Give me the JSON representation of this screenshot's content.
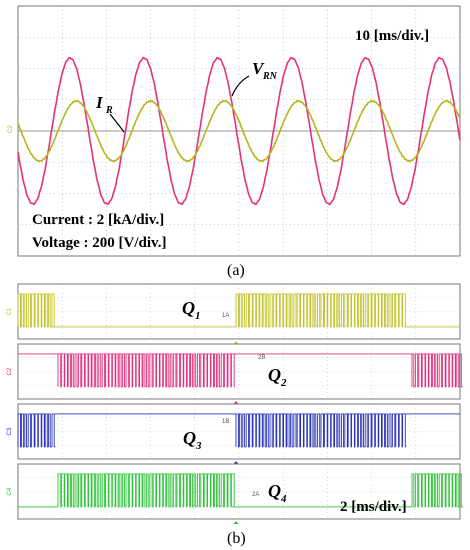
{
  "panel_a": {
    "time_scale": "10 [ms/div.]",
    "current_label_main": "I",
    "current_label_sub": "R",
    "voltage_label_main": "V",
    "voltage_label_sub": "RN",
    "current_scale": "Current : 2 [kA/div.]",
    "voltage_scale": "Voltage  : 200 [V/div.]",
    "caption": "(a)",
    "channel_tags": [
      "C2",
      "C1"
    ],
    "colors": {
      "voltage": "#e8307a",
      "current": "#b5b520",
      "grid": "#9a9a9a"
    }
  },
  "panel_b": {
    "time_scale": "2 [ms/div.]",
    "caption": "(b)",
    "channels": [
      {
        "main": "Q",
        "sub": "1",
        "tag": "1A",
        "side_tag": "C1",
        "color": "#c2c22a"
      },
      {
        "main": "Q",
        "sub": "2",
        "tag": "2B",
        "side_tag": "C2",
        "color": "#e0307e"
      },
      {
        "main": "Q",
        "sub": "3",
        "tag": "1B",
        "side_tag": "C3",
        "color": "#2a35b8"
      },
      {
        "main": "Q",
        "sub": "4",
        "tag": "2A",
        "side_tag": "C4",
        "color": "#2ec43a"
      }
    ]
  }
}
